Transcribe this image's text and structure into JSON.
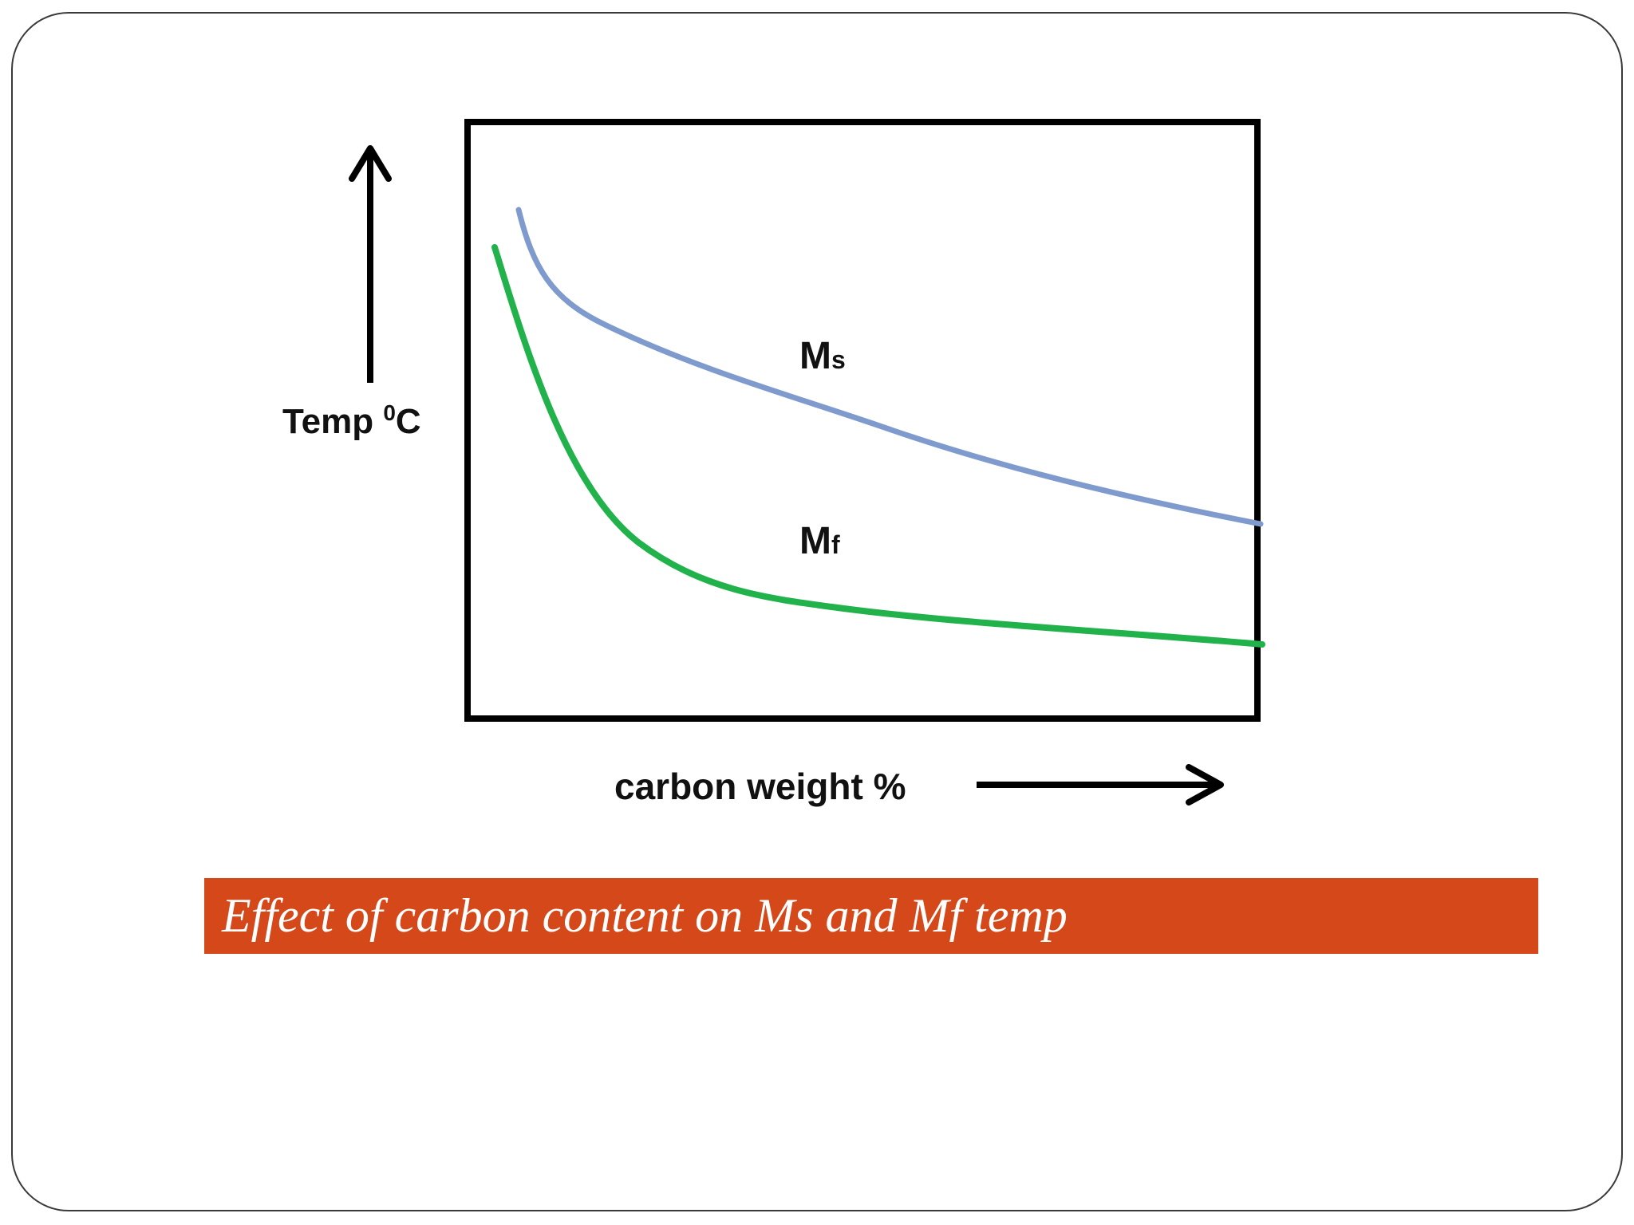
{
  "diagram": {
    "y_axis_label": "Temp ",
    "y_axis_label_sup": "0",
    "y_axis_label_unit": "C",
    "x_axis_label": "carbon weight %",
    "curves": [
      {
        "name": "Ms",
        "label_main": "M",
        "label_sub": "s",
        "color": "#7f9acc"
      },
      {
        "name": "Mf",
        "label_main": "M",
        "label_sub": "f",
        "color": "#22b24c"
      }
    ]
  },
  "caption": {
    "text": "Effect of carbon content on Ms and Mf temp",
    "background": "#d4481a"
  }
}
